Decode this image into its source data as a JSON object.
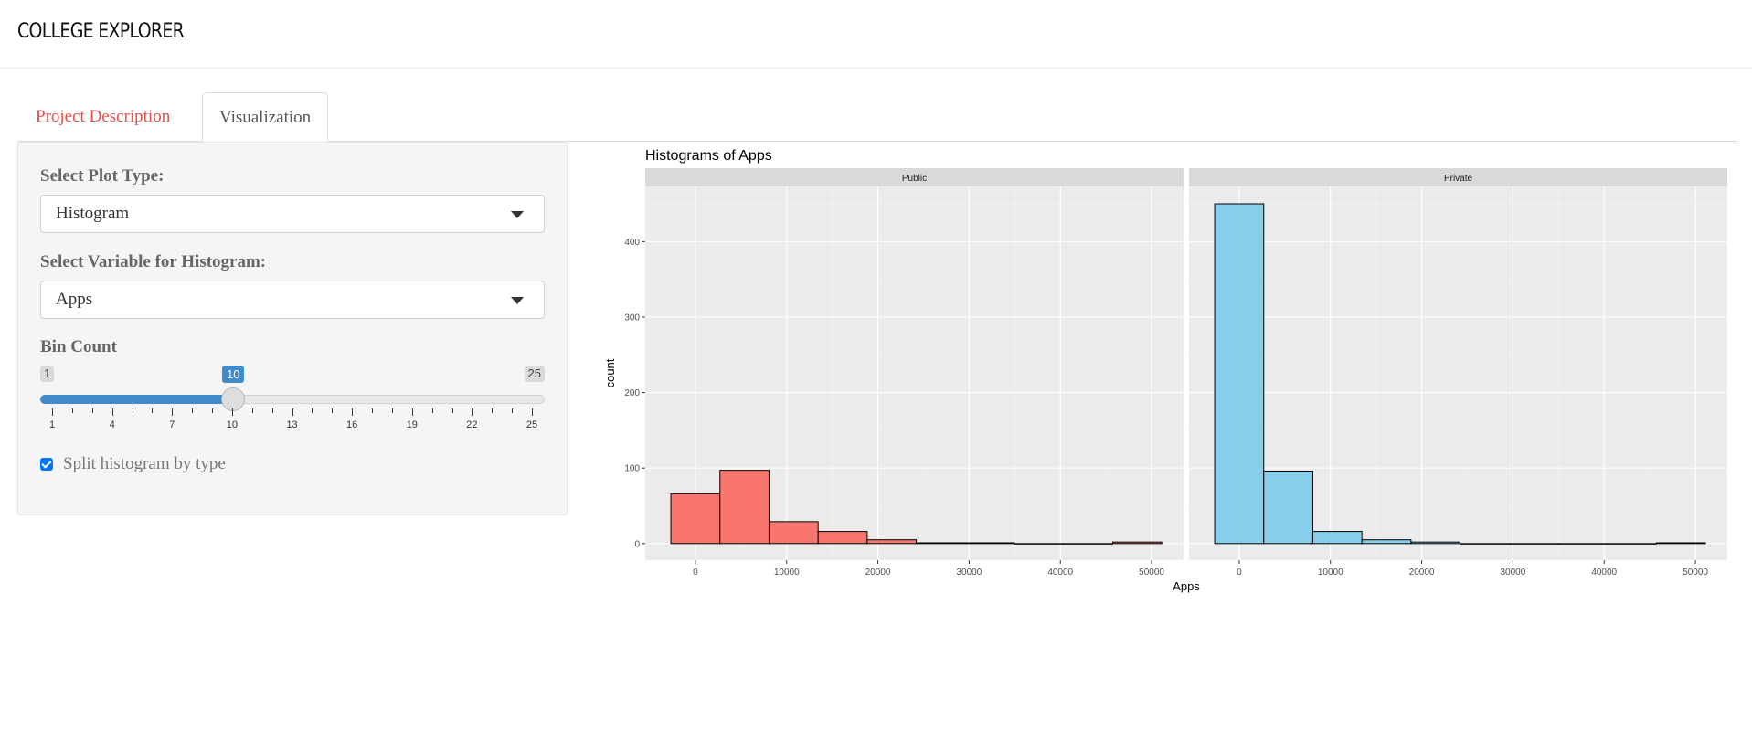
{
  "app": {
    "title": "COLLEGE EXPLORER"
  },
  "tabs": [
    {
      "label": "Project Description",
      "active": false
    },
    {
      "label": "Visualization",
      "active": true
    }
  ],
  "sidebar": {
    "plot_type_label": "Select Plot Type:",
    "plot_type_value": "Histogram",
    "variable_label": "Select Variable for Histogram:",
    "variable_value": "Apps",
    "bin_label": "Bin Count",
    "slider": {
      "min": 1,
      "max": 25,
      "value": 10,
      "min_label": "1",
      "max_label": "25",
      "value_label": "10",
      "tick_labels": [
        "1",
        "4",
        "7",
        "10",
        "13",
        "16",
        "19",
        "22",
        "25"
      ]
    },
    "split_checked": true,
    "split_label": "Split histogram by type"
  },
  "colors": {
    "public": "#f8766d",
    "private": "#87ceeb",
    "panel": "#ebebeb",
    "strip": "#d9d9d9",
    "accent": "#428bca",
    "tab_link": "#e0524a"
  },
  "chart_data": {
    "type": "bar",
    "title": "Histograms of Apps",
    "xlabel": "Apps",
    "ylabel": "count",
    "xlim": [
      -5500,
      53500
    ],
    "ylim": [
      -22,
      473
    ],
    "x_ticks": [
      0,
      10000,
      20000,
      30000,
      40000,
      50000
    ],
    "y_ticks": [
      0,
      100,
      200,
      300,
      400
    ],
    "bins": [
      [
        -2690,
        2690
      ],
      [
        2690,
        8070
      ],
      [
        8070,
        13450
      ],
      [
        13450,
        18830
      ],
      [
        18830,
        24210
      ],
      [
        24210,
        29590
      ],
      [
        29590,
        34970
      ],
      [
        34970,
        40350
      ],
      [
        40350,
        45730
      ],
      [
        45730,
        51110
      ]
    ],
    "panels": [
      {
        "name": "Public",
        "color": "#f8766d",
        "values": [
          66,
          97,
          29,
          16,
          5,
          1,
          1,
          0,
          0,
          2
        ]
      },
      {
        "name": "Private",
        "color": "#87ceeb",
        "values": [
          450,
          96,
          16,
          5,
          2,
          0,
          0,
          0,
          0,
          1
        ]
      }
    ]
  }
}
